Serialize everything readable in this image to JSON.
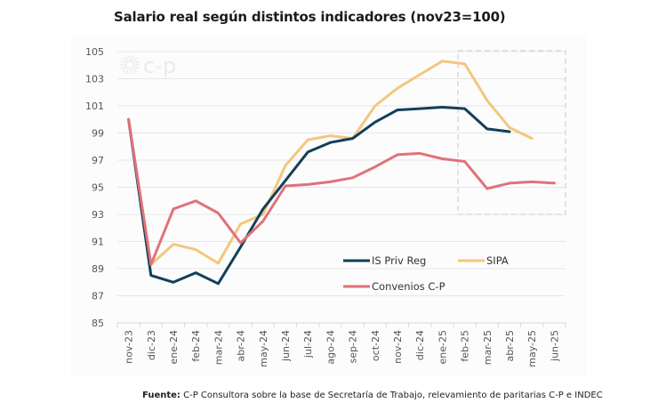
{
  "title": "Salario real según distintos indicadores (nov23=100)",
  "source": {
    "label": "Fuente:",
    "text": "C-P Consultora sobre la base de Secretaría de Trabajo, relevamiento de paritarias C-P e INDEC"
  },
  "watermark": "c-p",
  "chart_data": {
    "type": "line",
    "title": "Salario real según distintos indicadores (nov23=100)",
    "xlabel": "",
    "ylabel": "",
    "ylim": [
      85,
      105
    ],
    "yticks": [
      85,
      87,
      89,
      91,
      93,
      95,
      97,
      99,
      101,
      103,
      105
    ],
    "grid": true,
    "legend_position": "lower-right",
    "categories": [
      "nov-23",
      "dic-23",
      "ene-24",
      "feb-24",
      "mar-24",
      "abr-24",
      "may-24",
      "jun-24",
      "jul-24",
      "ago-24",
      "sep-24",
      "oct-24",
      "nov-24",
      "dic-24",
      "ene-25",
      "feb-25",
      "mar-25",
      "abr-25",
      "may-25",
      "jun-25"
    ],
    "highlight_box": {
      "from": "feb-25",
      "to": "jun-25",
      "ylim": [
        93,
        105
      ],
      "style": "dashed"
    },
    "series": [
      {
        "name": "IS Priv Reg",
        "color": "#123f5a",
        "values": [
          100,
          88.5,
          88.0,
          88.7,
          87.9,
          90.6,
          93.4,
          95.5,
          97.6,
          98.3,
          98.6,
          99.8,
          100.7,
          100.8,
          100.9,
          100.8,
          99.3,
          99.1,
          null,
          null
        ]
      },
      {
        "name": "SIPA",
        "color": "#f3c77e",
        "values": [
          100,
          89.3,
          90.8,
          90.4,
          89.4,
          92.3,
          93.0,
          96.6,
          98.5,
          98.8,
          98.6,
          101.0,
          102.3,
          103.3,
          104.3,
          104.1,
          101.4,
          99.4,
          98.6,
          null
        ]
      },
      {
        "name": "Convenios C-P",
        "color": "#e0727a",
        "values": [
          100,
          89.3,
          93.4,
          94.0,
          93.1,
          90.9,
          92.5,
          95.1,
          95.2,
          95.4,
          95.7,
          96.5,
          97.4,
          97.5,
          97.1,
          96.9,
          94.9,
          95.3,
          95.4,
          95.3
        ]
      }
    ]
  }
}
